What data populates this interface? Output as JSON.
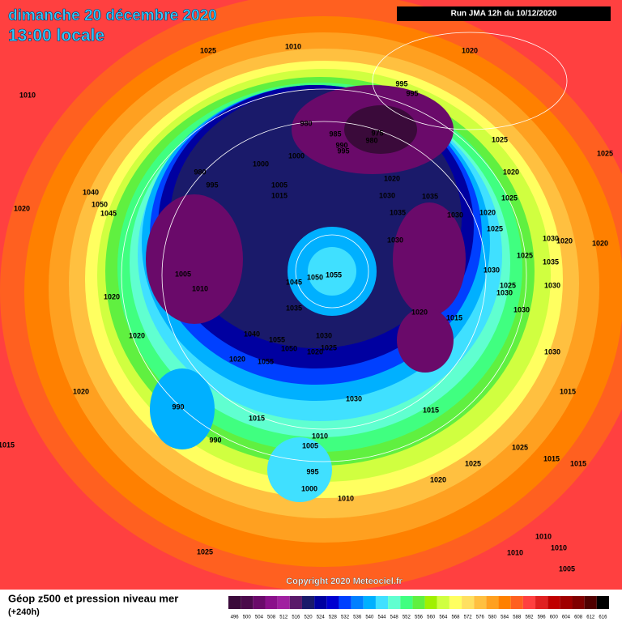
{
  "header": {
    "title": "dimanche 20 décembre 2020",
    "subtitle": "13:00 locale",
    "run": "Run JMA 12h du 10/12/2020"
  },
  "footer": {
    "caption": "Géop z500 et pression niveau mer",
    "lead": "(+240h)",
    "copyright": "Copyright 2020 Meteociel.fr"
  },
  "scale": {
    "ticks": [
      496,
      500,
      504,
      508,
      512,
      516,
      520,
      524,
      528,
      532,
      536,
      540,
      544,
      548,
      552,
      556,
      560,
      564,
      568,
      572,
      576,
      580,
      584,
      588,
      592,
      596,
      600,
      604,
      608,
      612,
      616
    ],
    "colors": [
      "#3a0a3a",
      "#4b0a4b",
      "#6a0a6a",
      "#8a108a",
      "#a020a0",
      "#5a1a6a",
      "#1a1a6a",
      "#0000a0",
      "#0000d0",
      "#0040ff",
      "#0080ff",
      "#00b0ff",
      "#40e0ff",
      "#60ffd0",
      "#40ff80",
      "#60f040",
      "#a0f000",
      "#d0ff40",
      "#ffff60",
      "#ffe060",
      "#ffc040",
      "#ffa020",
      "#ff8000",
      "#ff6020",
      "#ff4040",
      "#e02020",
      "#c00000",
      "#a00000",
      "#800000",
      "#500000",
      "#000000"
    ]
  },
  "isobar_labels": [
    1025,
    1010,
    1020,
    995,
    995,
    980,
    985,
    975,
    980,
    990,
    995,
    1000,
    1000,
    980,
    995,
    1005,
    1015,
    1020,
    1030,
    1035,
    1035,
    1030,
    1025,
    1020,
    1025,
    1020,
    1025,
    1030,
    1030,
    1020,
    1020,
    1025,
    1035,
    1030,
    1025,
    1030,
    1030,
    1020,
    1015,
    1030,
    1005,
    1010,
    1020,
    1045,
    1050,
    1055,
    1035,
    1040,
    1055,
    1050,
    1030,
    1025,
    1020,
    1020,
    1055,
    1020,
    1020,
    990,
    990,
    1015,
    1030,
    1015,
    1030,
    1015,
    1010,
    1005,
    995,
    1000,
    1010,
    1020,
    1025,
    1025,
    1015,
    1015,
    1020,
    1015,
    1025,
    1010,
    1010,
    1010,
    1005,
    1040,
    1050,
    1045,
    1010,
    1025
  ]
}
